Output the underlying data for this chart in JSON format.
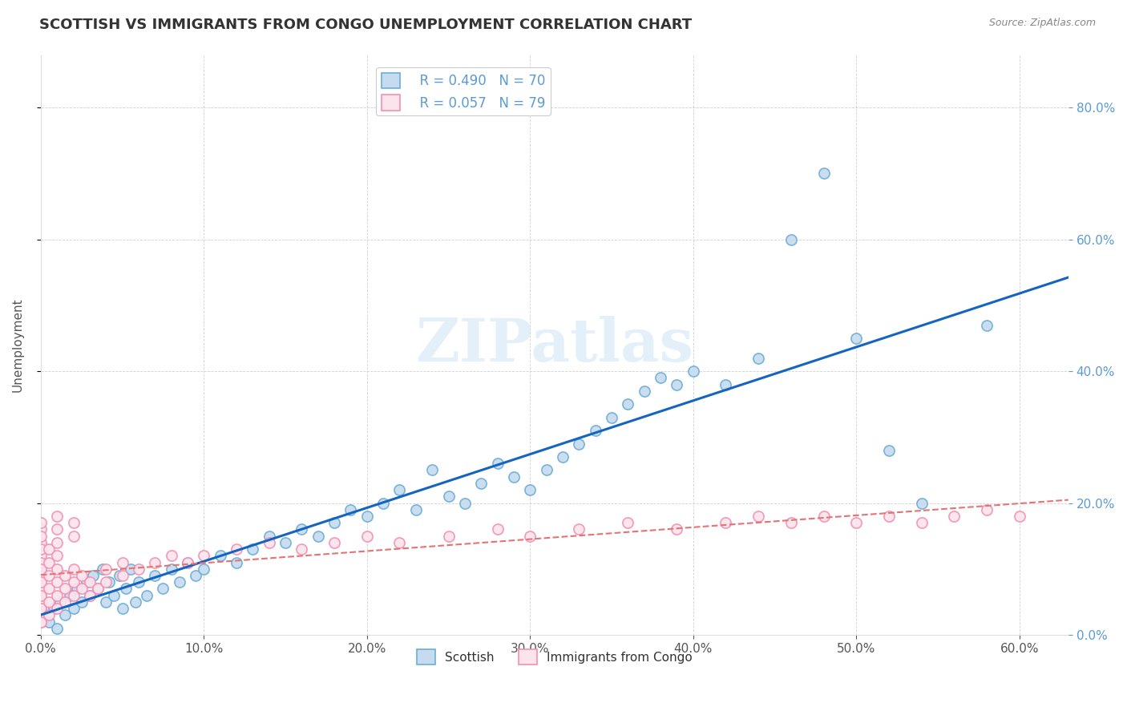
{
  "title": "SCOTTISH VS IMMIGRANTS FROM CONGO UNEMPLOYMENT CORRELATION CHART",
  "source": "Source: ZipAtlas.com",
  "ylabel": "Unemployment",
  "xlim": [
    0.0,
    0.63
  ],
  "ylim": [
    0.0,
    0.88
  ],
  "legend_r_scottish": "R = 0.490",
  "legend_n_scottish": "N = 70",
  "legend_r_congo": "R = 0.057",
  "legend_n_congo": "N = 79",
  "scottish_color": "#6baed6",
  "scottish_color_light": "#c6dbef",
  "congo_color": "#f48fb1",
  "congo_color_light": "#fce4ec",
  "trendline_scottish": "#1565c0",
  "trendline_congo": "#e57373",
  "background_color": "#ffffff",
  "watermark": "ZIPatlas",
  "scottish_x": [
    0.0,
    0.005,
    0.008,
    0.01,
    0.012,
    0.015,
    0.018,
    0.02,
    0.022,
    0.025,
    0.028,
    0.03,
    0.032,
    0.035,
    0.038,
    0.04,
    0.042,
    0.045,
    0.048,
    0.05,
    0.052,
    0.055,
    0.058,
    0.06,
    0.065,
    0.07,
    0.075,
    0.08,
    0.085,
    0.09,
    0.095,
    0.1,
    0.11,
    0.12,
    0.13,
    0.14,
    0.15,
    0.16,
    0.17,
    0.18,
    0.19,
    0.2,
    0.21,
    0.22,
    0.23,
    0.24,
    0.25,
    0.26,
    0.27,
    0.28,
    0.29,
    0.3,
    0.31,
    0.32,
    0.33,
    0.34,
    0.35,
    0.36,
    0.37,
    0.38,
    0.39,
    0.4,
    0.42,
    0.44,
    0.46,
    0.48,
    0.5,
    0.52,
    0.54,
    0.58
  ],
  "scottish_y": [
    0.03,
    0.02,
    0.04,
    0.01,
    0.05,
    0.03,
    0.06,
    0.04,
    0.07,
    0.05,
    0.08,
    0.06,
    0.09,
    0.07,
    0.1,
    0.05,
    0.08,
    0.06,
    0.09,
    0.04,
    0.07,
    0.1,
    0.05,
    0.08,
    0.06,
    0.09,
    0.07,
    0.1,
    0.08,
    0.11,
    0.09,
    0.1,
    0.12,
    0.11,
    0.13,
    0.15,
    0.14,
    0.16,
    0.15,
    0.17,
    0.19,
    0.18,
    0.2,
    0.22,
    0.19,
    0.25,
    0.21,
    0.2,
    0.23,
    0.26,
    0.24,
    0.22,
    0.25,
    0.27,
    0.29,
    0.31,
    0.33,
    0.35,
    0.37,
    0.39,
    0.38,
    0.4,
    0.38,
    0.42,
    0.6,
    0.7,
    0.45,
    0.28,
    0.2,
    0.47
  ],
  "congo_x": [
    0.0,
    0.0,
    0.0,
    0.0,
    0.0,
    0.0,
    0.0,
    0.0,
    0.0,
    0.0,
    0.0,
    0.0,
    0.0,
    0.0,
    0.0,
    0.0,
    0.0,
    0.0,
    0.0,
    0.0,
    0.0,
    0.005,
    0.005,
    0.005,
    0.005,
    0.005,
    0.005,
    0.01,
    0.01,
    0.01,
    0.01,
    0.01,
    0.015,
    0.015,
    0.015,
    0.02,
    0.02,
    0.02,
    0.025,
    0.025,
    0.03,
    0.03,
    0.035,
    0.04,
    0.04,
    0.05,
    0.05,
    0.06,
    0.07,
    0.08,
    0.09,
    0.1,
    0.12,
    0.14,
    0.16,
    0.18,
    0.2,
    0.22,
    0.25,
    0.28,
    0.3,
    0.33,
    0.36,
    0.39,
    0.42,
    0.44,
    0.46,
    0.48,
    0.5,
    0.52,
    0.54,
    0.56,
    0.58,
    0.6,
    0.01,
    0.01,
    0.01,
    0.02,
    0.02
  ],
  "congo_y": [
    0.02,
    0.04,
    0.06,
    0.08,
    0.1,
    0.12,
    0.14,
    0.16,
    0.03,
    0.05,
    0.07,
    0.09,
    0.11,
    0.13,
    0.15,
    0.02,
    0.04,
    0.06,
    0.08,
    0.1,
    0.17,
    0.03,
    0.05,
    0.07,
    0.09,
    0.11,
    0.13,
    0.04,
    0.06,
    0.08,
    0.1,
    0.12,
    0.05,
    0.07,
    0.09,
    0.06,
    0.08,
    0.1,
    0.07,
    0.09,
    0.06,
    0.08,
    0.07,
    0.08,
    0.1,
    0.09,
    0.11,
    0.1,
    0.11,
    0.12,
    0.11,
    0.12,
    0.13,
    0.14,
    0.13,
    0.14,
    0.15,
    0.14,
    0.15,
    0.16,
    0.15,
    0.16,
    0.17,
    0.16,
    0.17,
    0.18,
    0.17,
    0.18,
    0.17,
    0.18,
    0.17,
    0.18,
    0.19,
    0.18,
    0.14,
    0.16,
    0.18,
    0.15,
    0.17
  ]
}
